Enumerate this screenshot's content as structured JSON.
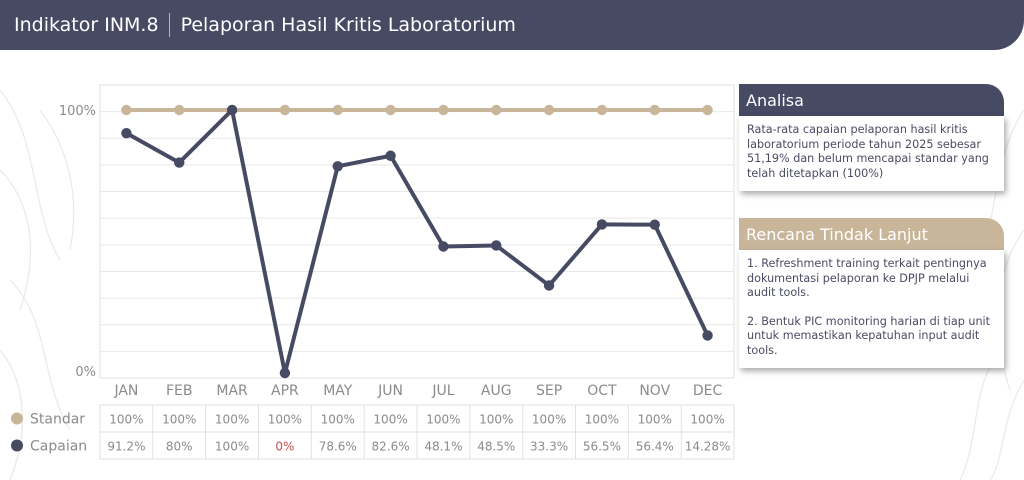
{
  "header": {
    "indicator": "Indikator INM.8",
    "title": "Pelaporan Hasil Kritis Laboratorium",
    "color": "#474a63"
  },
  "chart_data": {
    "type": "line",
    "categories": [
      "JAN",
      "FEB",
      "MAR",
      "APR",
      "MAY",
      "JUN",
      "JUL",
      "AUG",
      "SEP",
      "OCT",
      "NOV",
      "DEC"
    ],
    "series": [
      {
        "name": "Standar",
        "color": "#c9b59a",
        "values": [
          100,
          100,
          100,
          100,
          100,
          100,
          100,
          100,
          100,
          100,
          100,
          100
        ]
      },
      {
        "name": "Capaian",
        "color": "#474a63",
        "values": [
          91.2,
          80,
          100,
          0,
          78.6,
          82.6,
          48.1,
          48.5,
          33.3,
          56.5,
          56.4,
          14.28
        ]
      }
    ],
    "ylim": [
      0,
      100
    ],
    "y_ticks": [
      "100%",
      "0%"
    ],
    "grid": true
  },
  "table": {
    "rows": [
      {
        "label": "Standar",
        "color": "#c9b59a",
        "cells": [
          "100%",
          "100%",
          "100%",
          "100%",
          "100%",
          "100%",
          "100%",
          "100%",
          "100%",
          "100%",
          "100%",
          "100%"
        ]
      },
      {
        "label": "Capaian",
        "color": "#474a63",
        "cells": [
          "91.2%",
          "80%",
          "100%",
          "0%",
          "78.6%",
          "82.6%",
          "48.1%",
          "48.5%",
          "33.3%",
          "56.5%",
          "56.4%",
          "14.28%"
        ]
      }
    ],
    "highlight_color": "#c0504d"
  },
  "analisa": {
    "heading": "Analisa",
    "text": "Rata-rata capaian pelaporan hasil kritis laboratorium periode tahun 2025 sebesar 51,19% dan belum mencapai standar yang telah ditetapkan (100%)",
    "color": "#474a63"
  },
  "rtl": {
    "heading": "Rencana Tindak Lanjut",
    "items": [
      "1. Refreshment training terkait pentingnya dokumentasi pelaporan ke DPJP melalui audit tools.",
      "2. Bentuk PIC monitoring harian di tiap unit untuk memastikan kepatuhan input audit tools."
    ],
    "color": "#c9b59a"
  }
}
